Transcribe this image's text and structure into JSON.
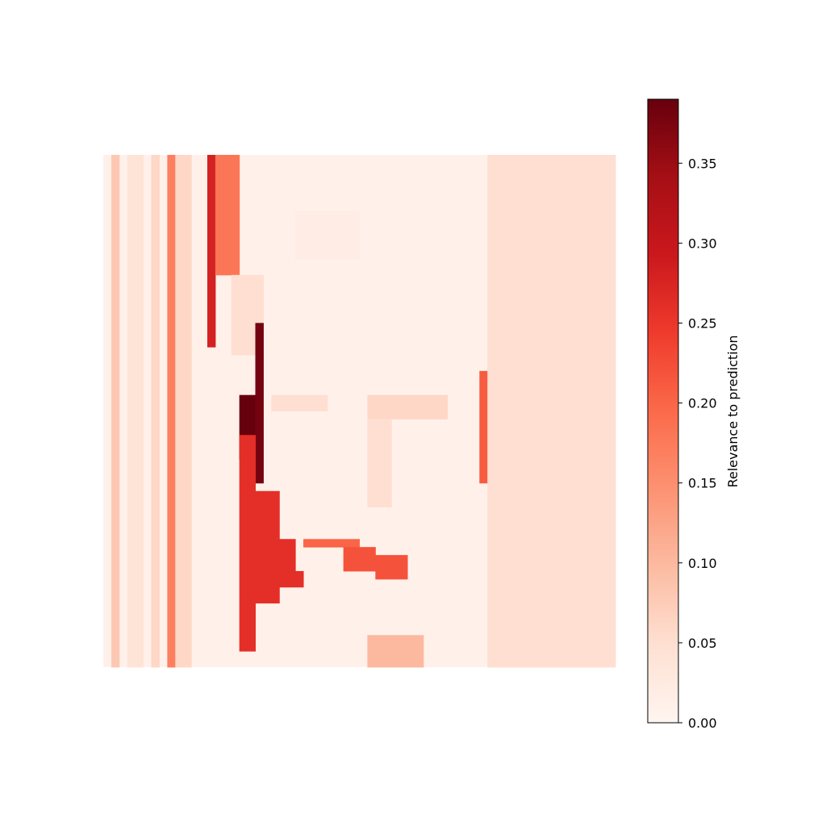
{
  "chart_data": {
    "type": "heatmap",
    "title": "",
    "xlabel": "",
    "ylabel": "",
    "axes_visible": false,
    "colormap": "Reds",
    "colormap_stops": [
      "#fff5f0",
      "#fee0d2",
      "#fcbba1",
      "#fc9272",
      "#fb6a4a",
      "#ef3b2c",
      "#cb181d",
      "#a50f15",
      "#67000d"
    ],
    "value_range": [
      0,
      0.39
    ],
    "colorbar": {
      "label": "Relevance to prediction",
      "placement": "right",
      "ticks": [
        0.0,
        0.05,
        0.1,
        0.15,
        0.2,
        0.25,
        0.3,
        0.35
      ],
      "tick_labels": [
        "0.00",
        "0.05",
        "0.10",
        "0.15",
        "0.20",
        "0.25",
        "0.30",
        "0.35"
      ]
    },
    "grid_shape": [
      64,
      64
    ],
    "background_value": 0.01,
    "regions": [
      {
        "name": "left-stripe-a",
        "value": 0.08,
        "cells": [
          [
            1,
            0,
            1,
            64
          ]
        ]
      },
      {
        "name": "left-stripe-b",
        "value": 0.04,
        "cells": [
          [
            3,
            0,
            2,
            64
          ]
        ]
      },
      {
        "name": "left-stripe-c",
        "value": 0.06,
        "cells": [
          [
            6,
            0,
            1,
            64
          ]
        ]
      },
      {
        "name": "left-stripe-d",
        "value": 0.17,
        "cells": [
          [
            8,
            0,
            1,
            64
          ]
        ]
      },
      {
        "name": "left-stripe-e",
        "value": 0.06,
        "cells": [
          [
            9,
            0,
            2,
            64
          ]
        ]
      },
      {
        "name": "left-stripe-f",
        "value": 0.28,
        "cells": [
          [
            13,
            0,
            1,
            24
          ]
        ]
      },
      {
        "name": "left-stripe-g",
        "value": 0.18,
        "cells": [
          [
            14,
            0,
            3,
            15
          ]
        ]
      },
      {
        "name": "hair-left-edge",
        "value": 0.05,
        "cells": [
          [
            16,
            15,
            4,
            10
          ]
        ]
      },
      {
        "name": "cheek-left-dark",
        "value": 0.39,
        "cells": [
          [
            17,
            30,
            2,
            8
          ]
        ]
      },
      {
        "name": "cheek-left-thin",
        "value": 0.38,
        "cells": [
          [
            19,
            21,
            1,
            20
          ]
        ]
      },
      {
        "name": "jaw-left",
        "value": 0.26,
        "cells": [
          [
            17,
            35,
            2,
            27
          ],
          [
            19,
            42,
            3,
            14
          ],
          [
            22,
            48,
            2,
            6
          ],
          [
            24,
            52,
            1,
            2
          ]
        ]
      },
      {
        "name": "face-right-edge",
        "value": 0.21,
        "cells": [
          [
            47,
            27,
            4,
            14
          ]
        ]
      },
      {
        "name": "right-dark-band",
        "value": 0.29,
        "cells": [
          [
            51,
            10,
            6,
            26
          ],
          [
            52,
            23,
            5,
            15
          ]
        ]
      },
      {
        "name": "mouth-upper",
        "value": 0.2,
        "cells": [
          [
            25,
            48,
            7,
            1
          ]
        ]
      },
      {
        "name": "mouth-lower",
        "value": 0.22,
        "cells": [
          [
            30,
            49,
            4,
            3
          ],
          [
            34,
            50,
            4,
            3
          ]
        ]
      },
      {
        "name": "chin-patch",
        "value": 0.1,
        "cells": [
          [
            33,
            60,
            7,
            4
          ]
        ]
      },
      {
        "name": "eye-left",
        "value": 0.05,
        "cells": [
          [
            21,
            30,
            7,
            2
          ]
        ]
      },
      {
        "name": "eye-right",
        "value": 0.06,
        "cells": [
          [
            33,
            30,
            10,
            3
          ]
        ]
      },
      {
        "name": "nose",
        "value": 0.05,
        "cells": [
          [
            33,
            33,
            3,
            11
          ]
        ]
      },
      {
        "name": "right-background",
        "value": 0.05,
        "cells": [
          [
            48,
            0,
            16,
            64
          ]
        ]
      },
      {
        "name": "hair-top",
        "value": 0.02,
        "cells": [
          [
            24,
            7,
            8,
            6
          ]
        ]
      }
    ]
  }
}
